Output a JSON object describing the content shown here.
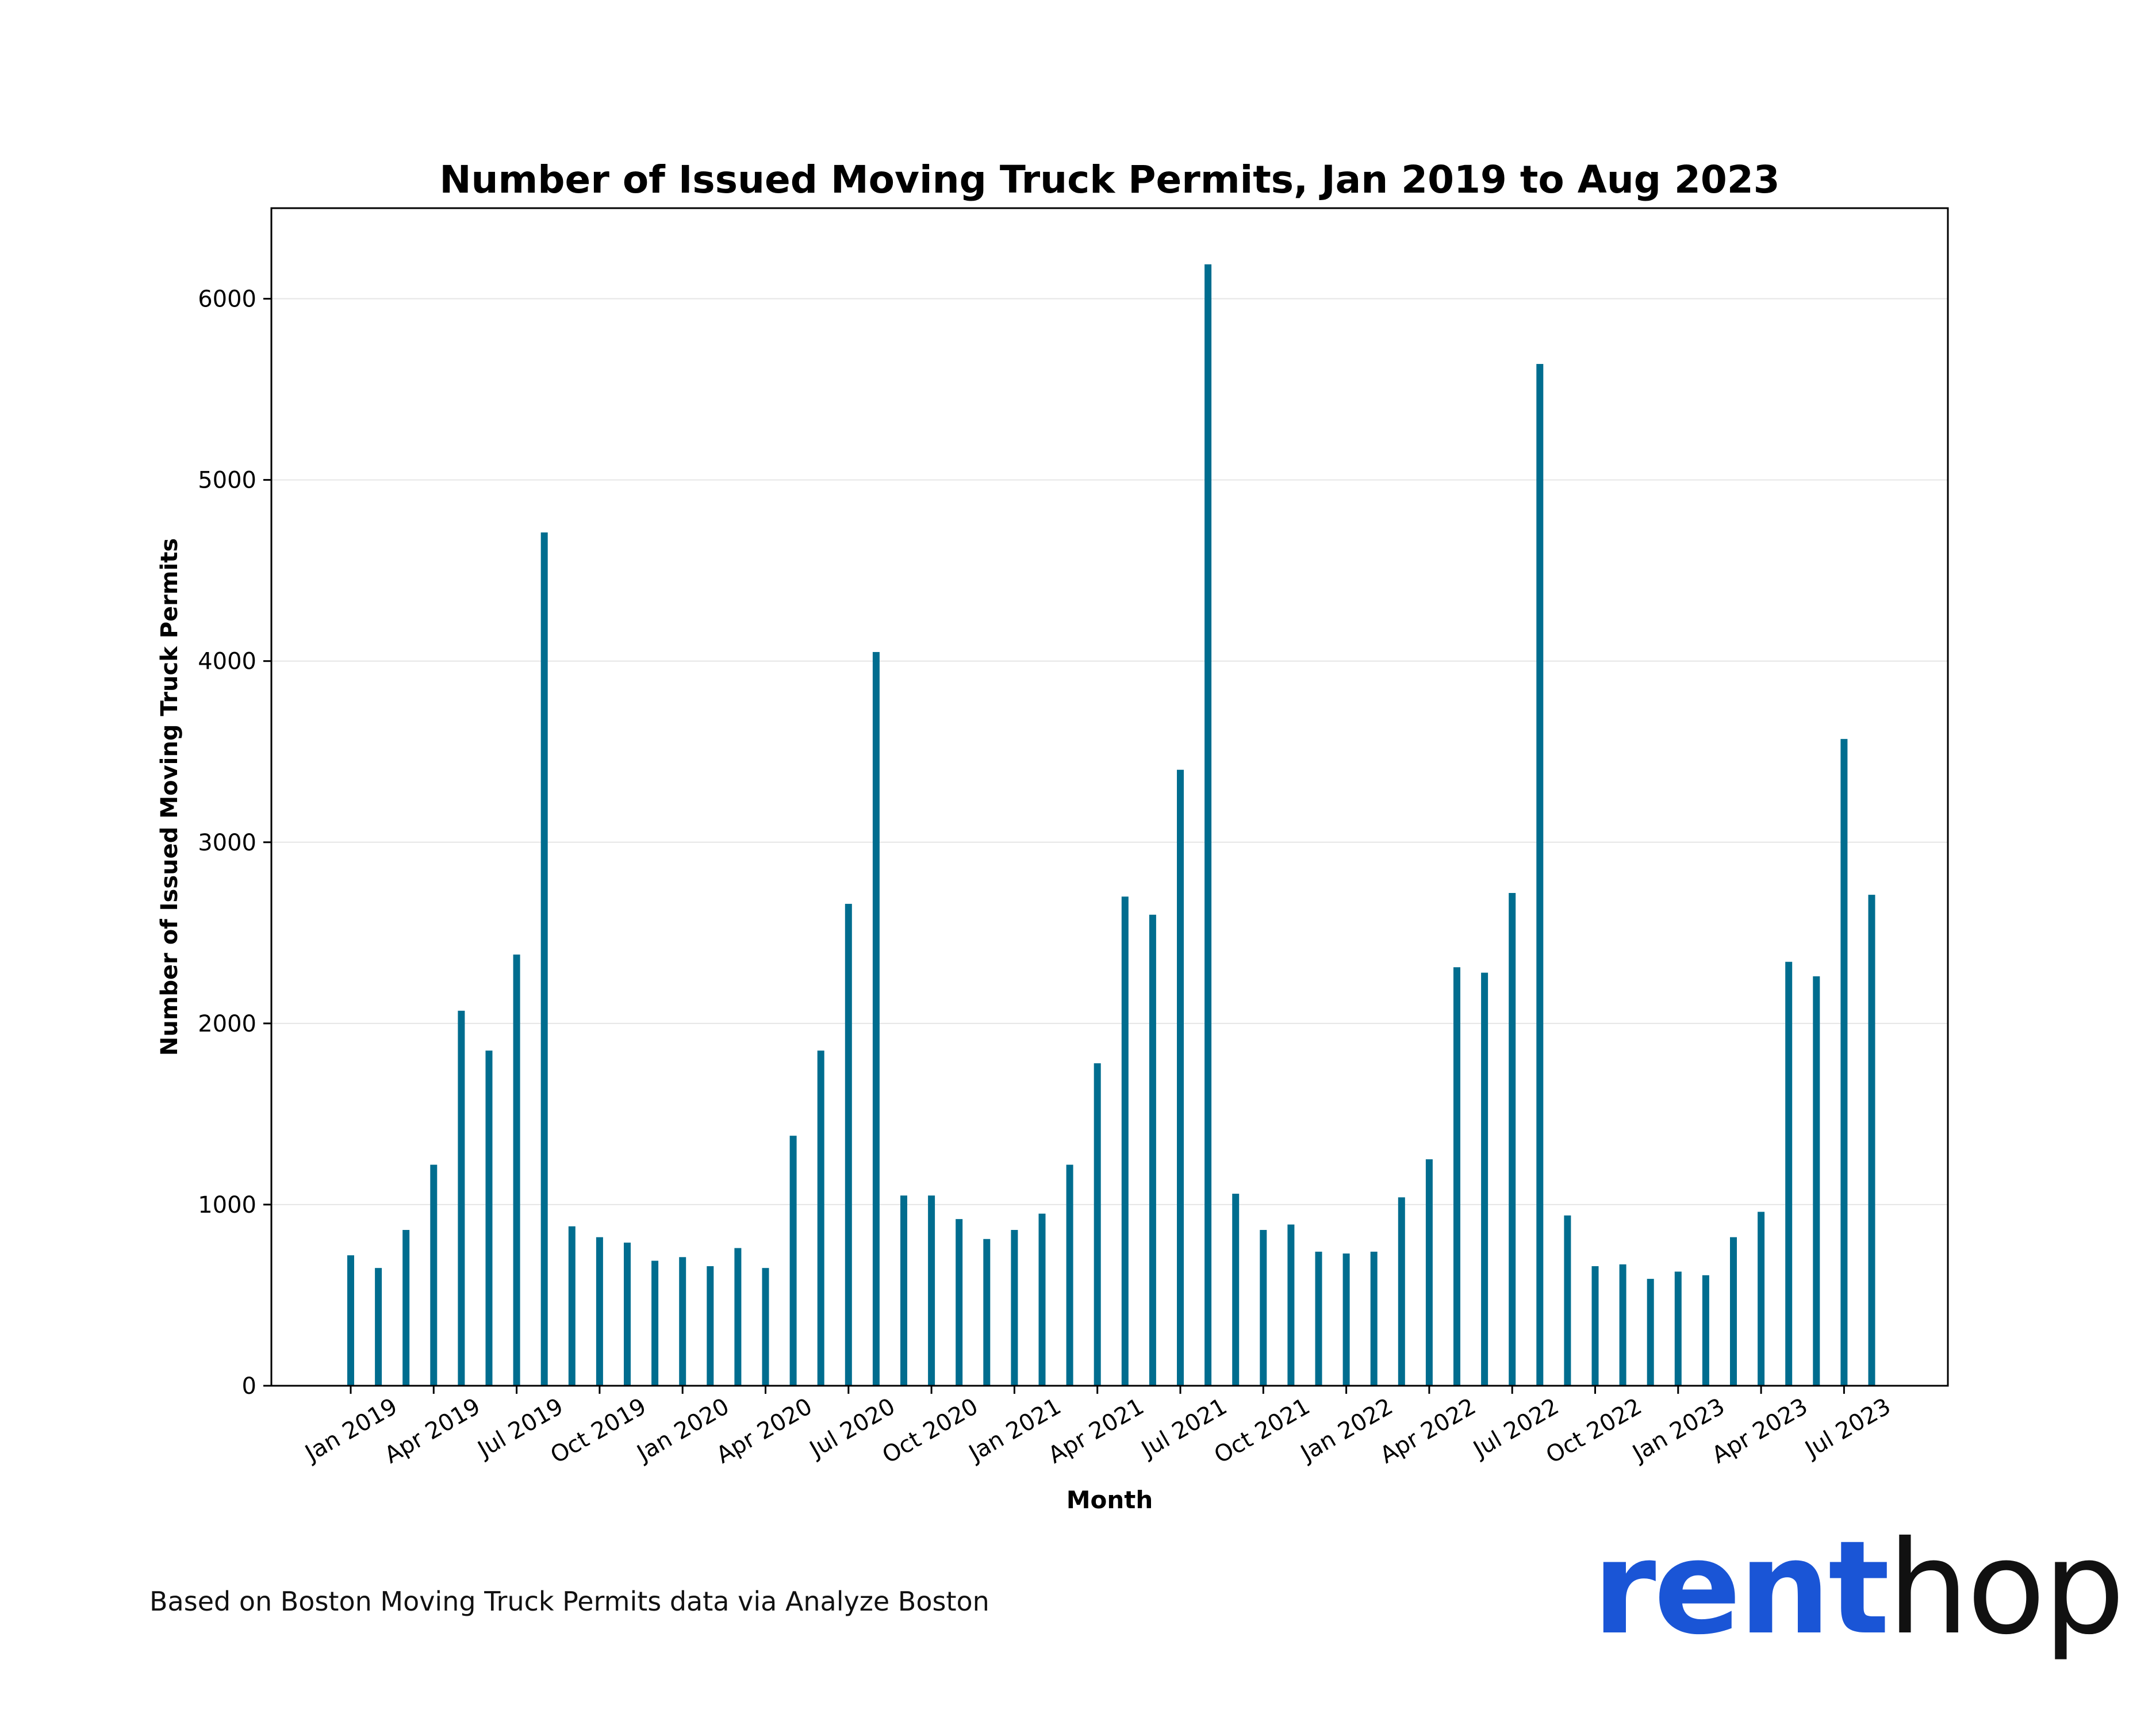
{
  "chart_data": {
    "type": "bar",
    "title": "Number of Issued Moving Truck Permits, Jan 2019 to Aug 2023",
    "xlabel": "Month",
    "ylabel": "Number of Issued Moving Truck Permits",
    "ylim": [
      0,
      6500
    ],
    "yticks": [
      0,
      1000,
      2000,
      3000,
      4000,
      5000,
      6000
    ],
    "x_tick_labels": [
      "Jan 2019",
      "Apr 2019",
      "Jul 2019",
      "Oct 2019",
      "Jan 2020",
      "Apr 2020",
      "Jul 2020",
      "Oct 2020",
      "Jan 2021",
      "Apr 2021",
      "Jul 2021",
      "Oct 2021",
      "Jan 2022",
      "Apr 2022",
      "Jul 2022",
      "Oct 2022",
      "Jan 2023",
      "Apr 2023",
      "Jul 2023"
    ],
    "grid": "horizontal",
    "bar_color": "#006d8f",
    "categories": [
      "Jan 2019",
      "Feb 2019",
      "Mar 2019",
      "Apr 2019",
      "May 2019",
      "Jun 2019",
      "Jul 2019",
      "Aug 2019",
      "Sep 2019",
      "Oct 2019",
      "Nov 2019",
      "Dec 2019",
      "Jan 2020",
      "Feb 2020",
      "Mar 2020",
      "Apr 2020",
      "May 2020",
      "Jun 2020",
      "Jul 2020",
      "Aug 2020",
      "Sep 2020",
      "Oct 2020",
      "Nov 2020",
      "Dec 2020",
      "Jan 2021",
      "Feb 2021",
      "Mar 2021",
      "Apr 2021",
      "May 2021",
      "Jun 2021",
      "Jul 2021",
      "Aug 2021",
      "Sep 2021",
      "Oct 2021",
      "Nov 2021",
      "Dec 2021",
      "Jan 2022",
      "Feb 2022",
      "Mar 2022",
      "Apr 2022",
      "May 2022",
      "Jun 2022",
      "Jul 2022",
      "Aug 2022",
      "Sep 2022",
      "Oct 2022",
      "Nov 2022",
      "Dec 2022",
      "Jan 2023",
      "Feb 2023",
      "Mar 2023",
      "Apr 2023",
      "May 2023",
      "Jun 2023",
      "Jul 2023",
      "Aug 2023"
    ],
    "values": [
      720,
      650,
      860,
      1220,
      2070,
      1850,
      2380,
      4710,
      880,
      820,
      790,
      690,
      710,
      660,
      760,
      650,
      1380,
      1850,
      2660,
      4050,
      1050,
      1050,
      920,
      810,
      860,
      950,
      1220,
      1780,
      2700,
      2600,
      3400,
      6190,
      1060,
      860,
      890,
      740,
      730,
      740,
      1040,
      1250,
      2310,
      2280,
      2720,
      5640,
      940,
      660,
      670,
      590,
      630,
      610,
      820,
      960,
      2340,
      2260,
      3570,
      2710
    ]
  },
  "footnote": "Based on Boston Moving Truck Permits data via Analyze Boston",
  "logo": {
    "rent": "rent",
    "hop": "hop"
  }
}
